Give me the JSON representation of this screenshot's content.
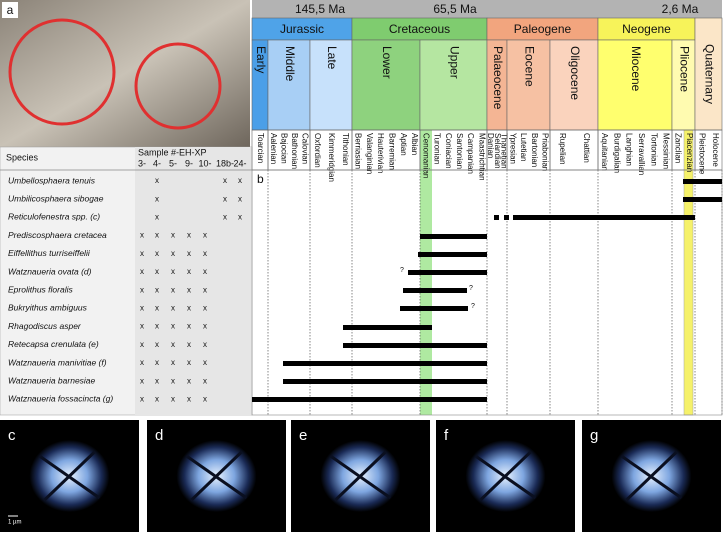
{
  "panels": {
    "a": "a",
    "b": "b"
  },
  "timescale": {
    "ages": [
      "145,5 Ma",
      "65,5 Ma",
      "2,6 Ma"
    ],
    "periods": [
      {
        "name": "Jurassic",
        "epochs": [
          {
            "name": "Early",
            "stages": [
              "Toarcian"
            ]
          },
          {
            "name": "Middle",
            "stages": [
              "Aalenian",
              "Bajocian",
              "Bathonian",
              "Calovian"
            ]
          },
          {
            "name": "Late",
            "stages": [
              "Oxfordian",
              "Kimmeridgian",
              "Tithonian"
            ]
          }
        ]
      },
      {
        "name": "Cretaceous",
        "epochs": [
          {
            "name": "Lower",
            "stages": [
              "Berriasian",
              "Valanginian",
              "Hauterivian",
              "Barremian",
              "Aptian",
              "Albian"
            ]
          },
          {
            "name": "Upper",
            "stages": [
              "Cenomanian",
              "Turonian",
              "Coniacian",
              "Santonian",
              "Campanian",
              "Maastrichtian"
            ]
          }
        ]
      },
      {
        "name": "Paleogene",
        "epochs": [
          {
            "name": "Palaeocene",
            "stages": [
              "Danian",
              "Selandian",
              "Thanetian"
            ]
          },
          {
            "name": "Eocene",
            "stages": [
              "Ypresian",
              "Lutetian",
              "Bartonian",
              "Priabonian"
            ]
          },
          {
            "name": "Oligocene",
            "stages": [
              "Rupelian",
              "Chattian"
            ]
          }
        ]
      },
      {
        "name": "Neogene",
        "epochs": [
          {
            "name": "Miocene",
            "stages": [
              "Aquitanian",
              "Burdigalian",
              "Langhian",
              "Serravallian",
              "Tortonian",
              "Messinian"
            ]
          },
          {
            "name": "Pliocene",
            "stages": [
              "Zanclian",
              "Piacenzian"
            ]
          }
        ]
      },
      {
        "name": "Quaternary",
        "epochs": [
          {
            "name": null,
            "stages": [
              "Pleistocene",
              "Holocene"
            ]
          }
        ]
      }
    ]
  },
  "table": {
    "species_header": "Species",
    "sample_header": "Sample #-EH-XP",
    "sample_columns": [
      "3-",
      "4-",
      "5-",
      "9-",
      "10-",
      "18b-",
      "24-"
    ],
    "rows": [
      {
        "name": "Umbellosphaera tenuis",
        "samples": [
          null,
          "x",
          null,
          null,
          null,
          "x",
          "x"
        ]
      },
      {
        "name": "Umbilicosphaera sibogae",
        "samples": [
          null,
          "x",
          null,
          null,
          null,
          "x",
          "x"
        ]
      },
      {
        "name": "Reticulofenestra spp. (c)",
        "samples": [
          null,
          "x",
          null,
          null,
          null,
          "x",
          "x"
        ]
      },
      {
        "name": "Prediscosphaera cretacea",
        "samples": [
          "x",
          "x",
          "x",
          "x",
          "x",
          null,
          null
        ]
      },
      {
        "name": "Eiffellithus turriseiffelii",
        "samples": [
          "x",
          "x",
          "x",
          "x",
          "x",
          null,
          null
        ]
      },
      {
        "name": "Watznaueria ovata (d)",
        "samples": [
          "x",
          "x",
          "x",
          "x",
          "x",
          null,
          null
        ],
        "query": "?"
      },
      {
        "name": "Eprolithus floralis",
        "samples": [
          "x",
          "x",
          "x",
          "x",
          "x",
          null,
          null
        ],
        "query": "?"
      },
      {
        "name": "Bukryithus ambiguus",
        "samples": [
          "x",
          "x",
          "x",
          "x",
          "x",
          null,
          null
        ],
        "query": "?"
      },
      {
        "name": "Rhagodiscus asper",
        "samples": [
          "x",
          "x",
          "x",
          "x",
          "x",
          null,
          null
        ]
      },
      {
        "name": "Retecapsa crenulata (e)",
        "samples": [
          "x",
          "x",
          "x",
          "x",
          "x",
          null,
          null
        ]
      },
      {
        "name": "Watznaueria manivitiae (f)",
        "samples": [
          "x",
          "x",
          "x",
          "x",
          "x",
          null,
          null
        ]
      },
      {
        "name": "Watznaueria barnesiae",
        "samples": [
          "x",
          "x",
          "x",
          "x",
          "x",
          null,
          null
        ]
      },
      {
        "name": "Watznaueria fossacincta (g)",
        "samples": [
          "x",
          "x",
          "x",
          "x",
          "x",
          null,
          null
        ]
      }
    ]
  },
  "photos": {
    "labels": [
      "c",
      "d",
      "e",
      "f",
      "g"
    ],
    "scale": "1 µm"
  }
}
